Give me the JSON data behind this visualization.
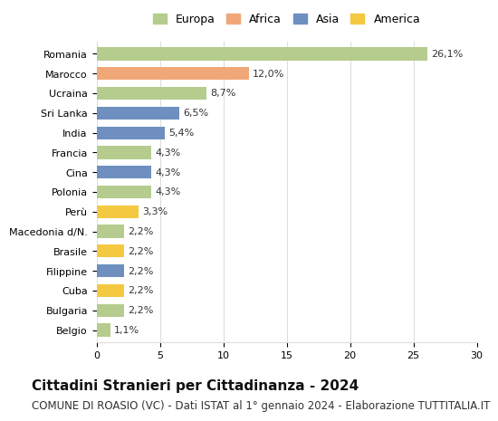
{
  "countries": [
    "Romania",
    "Marocco",
    "Ucraina",
    "Sri Lanka",
    "India",
    "Francia",
    "Cina",
    "Polonia",
    "Perù",
    "Macedonia d/N.",
    "Brasile",
    "Filippine",
    "Cuba",
    "Bulgaria",
    "Belgio"
  ],
  "values": [
    26.1,
    12.0,
    8.7,
    6.5,
    5.4,
    4.3,
    4.3,
    4.3,
    3.3,
    2.2,
    2.2,
    2.2,
    2.2,
    2.2,
    1.1
  ],
  "labels": [
    "26,1%",
    "12,0%",
    "8,7%",
    "6,5%",
    "5,4%",
    "4,3%",
    "4,3%",
    "4,3%",
    "3,3%",
    "2,2%",
    "2,2%",
    "2,2%",
    "2,2%",
    "2,2%",
    "1,1%"
  ],
  "continents": [
    "Europa",
    "Africa",
    "Europa",
    "Asia",
    "Asia",
    "Europa",
    "Asia",
    "Europa",
    "America",
    "Europa",
    "America",
    "Asia",
    "America",
    "Europa",
    "Europa"
  ],
  "continent_colors": {
    "Europa": "#b5cc8e",
    "Africa": "#f0a878",
    "Asia": "#6e8fbf",
    "America": "#f5c842"
  },
  "legend_order": [
    "Europa",
    "Africa",
    "Asia",
    "America"
  ],
  "xlim": [
    0,
    30
  ],
  "xticks": [
    0,
    5,
    10,
    15,
    20,
    25,
    30
  ],
  "title": "Cittadini Stranieri per Cittadinanza - 2024",
  "subtitle": "COMUNE DI ROASIO (VC) - Dati ISTAT al 1° gennaio 2024 - Elaborazione TUTTITALIA.IT",
  "title_fontsize": 11,
  "subtitle_fontsize": 8.5,
  "label_fontsize": 8,
  "tick_fontsize": 8,
  "legend_fontsize": 9,
  "bg_color": "#ffffff",
  "grid_color": "#dddddd",
  "bar_height": 0.65
}
